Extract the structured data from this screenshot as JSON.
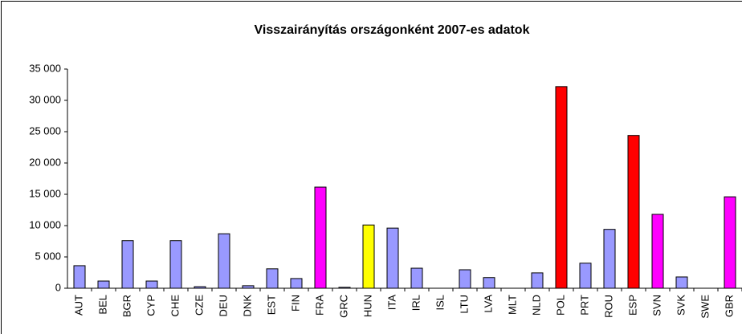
{
  "chart_data": {
    "type": "bar",
    "title": "Visszairányítás országonként 2007-es adatok",
    "categories": [
      "AUT",
      "BEL",
      "BGR",
      "CYP",
      "CHE",
      "CZE",
      "DEU",
      "DNK",
      "EST",
      "FIN",
      "FRA",
      "GRC",
      "HUN",
      "ITA",
      "IRL",
      "ISL",
      "LTU",
      "LVA",
      "MLT",
      "NLD",
      "POL",
      "PRT",
      "ROU",
      "ESP",
      "SVN",
      "SVK",
      "SWE",
      "GBR"
    ],
    "values": [
      3600,
      1150,
      7600,
      1150,
      7600,
      250,
      8700,
      400,
      3100,
      1550,
      16150,
      150,
      10100,
      9600,
      3200,
      0,
      2950,
      1700,
      0,
      2450,
      32200,
      4000,
      9400,
      24400,
      11800,
      1800,
      0,
      14600
    ],
    "colors": [
      "#9999ff",
      "#9999ff",
      "#9999ff",
      "#9999ff",
      "#9999ff",
      "#9999ff",
      "#9999ff",
      "#9999ff",
      "#9999ff",
      "#9999ff",
      "#ff00ff",
      "#9999ff",
      "#ffff00",
      "#9999ff",
      "#9999ff",
      "#9999ff",
      "#9999ff",
      "#9999ff",
      "#9999ff",
      "#9999ff",
      "#ff0000",
      "#9999ff",
      "#9999ff",
      "#ff0000",
      "#ff00ff",
      "#9999ff",
      "#9999ff",
      "#ff00ff"
    ],
    "ylim": [
      0,
      35000
    ],
    "yticks": [
      0,
      {
        "value": 5000,
        "label": "5 000"
      },
      {
        "value": 10000,
        "label": "10 000"
      },
      {
        "value": 15000,
        "label": "15 000"
      },
      {
        "value": 20000,
        "label": "20 000"
      },
      {
        "value": 25000,
        "label": "25 000"
      },
      {
        "value": 30000,
        "label": "30 000"
      },
      {
        "value": 35000,
        "label": "35 000"
      }
    ],
    "grid": false
  }
}
